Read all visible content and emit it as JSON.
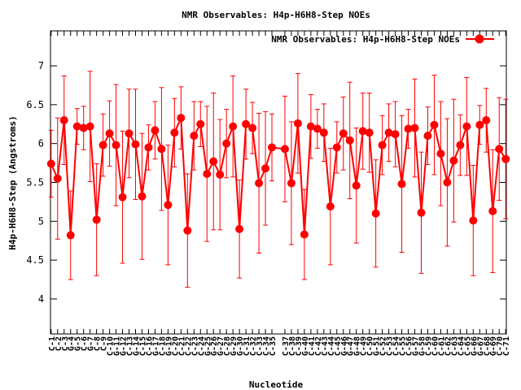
{
  "chart_data": {
    "type": "line",
    "title": "NMR Observables: H4p-H6H8-Step NOEs",
    "xlabel": "Nucleotide",
    "ylabel": "H4p-H6H8-Step (Angstroms)",
    "ylim": [
      3.55,
      7.45
    ],
    "yticks": [
      4,
      4.5,
      5,
      5.5,
      6,
      6.5,
      7
    ],
    "grid": false,
    "legend_position": "top-right",
    "series": [
      {
        "name": "NMR Observables: H4p-H6H8-Step NOEs",
        "color": "#ff0000",
        "marker": "circle",
        "errorbars": true
      }
    ],
    "points": [
      {
        "label": "C-1",
        "x": 1,
        "y": 5.74,
        "err": 0.43
      },
      {
        "label": "C-2",
        "x": 2,
        "y": 5.55,
        "err": 0.78
      },
      {
        "label": "C-3",
        "x": 3,
        "y": 6.3,
        "err": 0.57
      },
      {
        "label": "G-4",
        "x": 4,
        "y": 4.82,
        "err": 0.57
      },
      {
        "label": "G-5",
        "x": 5,
        "y": 6.22,
        "err": 0.23
      },
      {
        "label": "C-6",
        "x": 6,
        "y": 6.2,
        "err": 0.28
      },
      {
        "label": "G-7",
        "x": 7,
        "y": 6.22,
        "err": 0.71
      },
      {
        "label": "C-8",
        "x": 8,
        "y": 5.02,
        "err": 0.72
      },
      {
        "label": "C-9",
        "x": 9,
        "y": 5.98,
        "err": 0.4
      },
      {
        "label": "C-10",
        "x": 10,
        "y": 6.13,
        "err": 0.42
      },
      {
        "label": "G-11",
        "x": 11,
        "y": 5.98,
        "err": 0.78
      },
      {
        "label": "G-12",
        "x": 12,
        "y": 5.31,
        "err": 0.85
      },
      {
        "label": "C-13",
        "x": 13,
        "y": 6.13,
        "err": 0.57
      },
      {
        "label": "G-14",
        "x": 14,
        "y": 5.99,
        "err": 0.71
      },
      {
        "label": "C-15",
        "x": 15,
        "y": 5.32,
        "err": 0.81
      },
      {
        "label": "C-16",
        "x": 16,
        "y": 5.95,
        "err": 0.29
      },
      {
        "label": "G-17",
        "x": 17,
        "y": 6.17,
        "err": 0.37
      },
      {
        "label": "C-18",
        "x": 18,
        "y": 5.93,
        "err": 0.79
      },
      {
        "label": "G-19",
        "x": 19,
        "y": 5.21,
        "err": 0.77
      },
      {
        "label": "C-20",
        "x": 20,
        "y": 6.14,
        "err": 0.44
      },
      {
        "label": "C-21",
        "x": 21,
        "y": 6.33,
        "err": 0.4
      },
      {
        "label": "C-22",
        "x": 22,
        "y": 4.88,
        "err": 0.73
      },
      {
        "label": "C-23",
        "x": 23,
        "y": 6.1,
        "err": 0.44
      },
      {
        "label": "C-24",
        "x": 24,
        "y": 6.25,
        "err": 0.29
      },
      {
        "label": "G-25",
        "x": 25,
        "y": 5.61,
        "err": 0.87
      },
      {
        "label": "G-26",
        "x": 26,
        "y": 5.77,
        "err": 0.88
      },
      {
        "label": "G-27",
        "x": 27,
        "y": 5.6,
        "err": 0.71
      },
      {
        "label": "C-28",
        "x": 28,
        "y": 6.0,
        "err": 0.44
      },
      {
        "label": "G-29",
        "x": 29,
        "y": 6.22,
        "err": 0.65
      },
      {
        "label": "G-30",
        "x": 30,
        "y": 4.9,
        "err": 0.63
      },
      {
        "label": "C-31",
        "x": 31,
        "y": 6.25,
        "err": 0.45
      },
      {
        "label": "C-32",
        "x": 32,
        "y": 6.2,
        "err": 0.33
      },
      {
        "label": "C-33",
        "x": 33,
        "y": 5.49,
        "err": 0.9
      },
      {
        "label": "C-34",
        "x": 34,
        "y": 5.68,
        "err": 0.73
      },
      {
        "label": "C-35",
        "x": 35,
        "y": 5.95,
        "err": 0.43
      },
      {
        "label": "C-37",
        "x": 37,
        "y": 5.93,
        "err": 0.68
      },
      {
        "label": "C-38",
        "x": 38,
        "y": 5.49,
        "err": 0.79
      },
      {
        "label": "C-39",
        "x": 39,
        "y": 6.26,
        "err": 0.64
      },
      {
        "label": "G-40",
        "x": 40,
        "y": 4.83,
        "err": 0.58
      },
      {
        "label": "C-41",
        "x": 41,
        "y": 6.22,
        "err": 0.41
      },
      {
        "label": "C-42",
        "x": 42,
        "y": 6.19,
        "err": 0.25
      },
      {
        "label": "C-43",
        "x": 43,
        "y": 6.14,
        "err": 0.37
      },
      {
        "label": "C-44",
        "x": 44,
        "y": 5.19,
        "err": 0.75
      },
      {
        "label": "C-45",
        "x": 45,
        "y": 5.95,
        "err": 0.33
      },
      {
        "label": "G-46",
        "x": 46,
        "y": 6.13,
        "err": 0.47
      },
      {
        "label": "G-47",
        "x": 47,
        "y": 6.04,
        "err": 0.75
      },
      {
        "label": "G-48",
        "x": 48,
        "y": 5.46,
        "err": 0.74
      },
      {
        "label": "C-49",
        "x": 49,
        "y": 6.16,
        "err": 0.49
      },
      {
        "label": "C-50",
        "x": 50,
        "y": 6.14,
        "err": 0.51
      },
      {
        "label": "G-51",
        "x": 51,
        "y": 5.1,
        "err": 0.69
      },
      {
        "label": "C-52",
        "x": 52,
        "y": 5.98,
        "err": 0.38
      },
      {
        "label": "C-53",
        "x": 53,
        "y": 6.14,
        "err": 0.37
      },
      {
        "label": "C-54",
        "x": 54,
        "y": 6.12,
        "err": 0.42
      },
      {
        "label": "C-55",
        "x": 55,
        "y": 5.48,
        "err": 0.88
      },
      {
        "label": "C-56",
        "x": 56,
        "y": 6.19,
        "err": 0.25
      },
      {
        "label": "G-57",
        "x": 57,
        "y": 6.2,
        "err": 0.63
      },
      {
        "label": "G-58",
        "x": 58,
        "y": 5.11,
        "err": 0.78
      },
      {
        "label": "C-59",
        "x": 59,
        "y": 6.1,
        "err": 0.37
      },
      {
        "label": "C-60",
        "x": 60,
        "y": 6.24,
        "err": 0.64
      },
      {
        "label": "C-61",
        "x": 61,
        "y": 5.87,
        "err": 0.67
      },
      {
        "label": "C-62",
        "x": 62,
        "y": 5.5,
        "err": 0.82
      },
      {
        "label": "C-63",
        "x": 63,
        "y": 5.78,
        "err": 0.79
      },
      {
        "label": "C-64",
        "x": 64,
        "y": 5.98,
        "err": 0.39
      },
      {
        "label": "C-65",
        "x": 65,
        "y": 6.22,
        "err": 0.63
      },
      {
        "label": "G-66",
        "x": 66,
        "y": 5.01,
        "err": 0.71
      },
      {
        "label": "G-67",
        "x": 67,
        "y": 6.24,
        "err": 0.25
      },
      {
        "label": "C-68",
        "x": 68,
        "y": 6.3,
        "err": 0.41
      },
      {
        "label": "G-69",
        "x": 69,
        "y": 5.13,
        "err": 0.79
      },
      {
        "label": "C-70",
        "x": 70,
        "y": 5.93,
        "err": 0.66
      },
      {
        "label": "C-71",
        "x": 71,
        "y": 5.8,
        "err": 0.77
      }
    ]
  }
}
